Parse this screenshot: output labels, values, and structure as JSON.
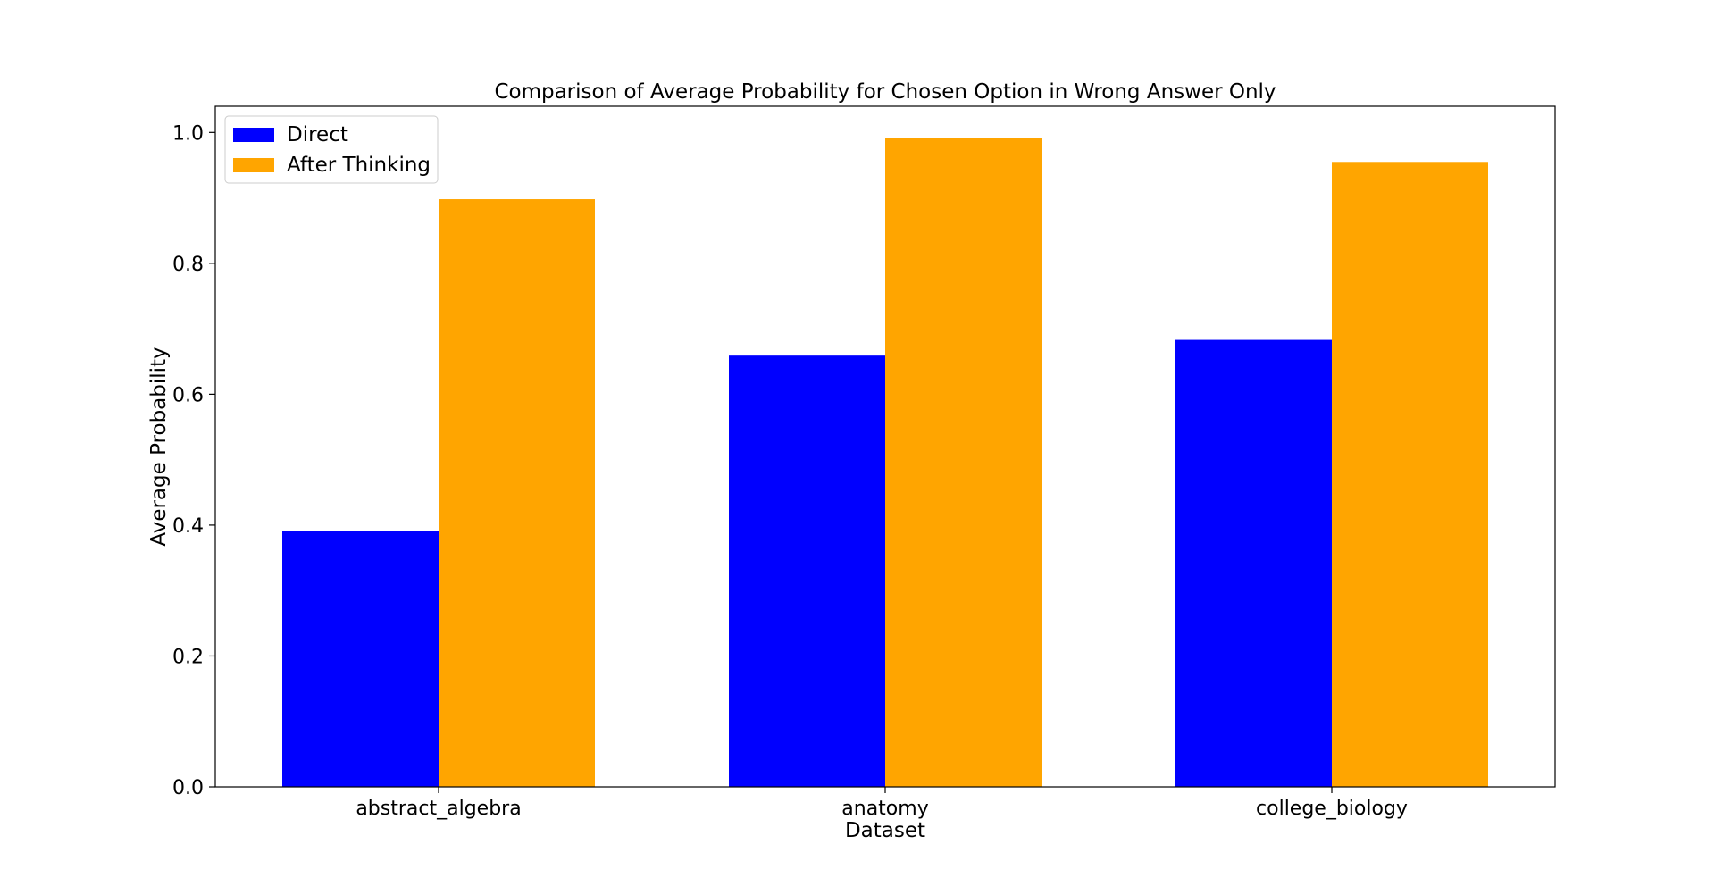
{
  "chart_data": {
    "type": "bar",
    "title": "Comparison of Average Probability for Chosen Option in Wrong Answer Only",
    "xlabel": "Dataset",
    "ylabel": "Average Probability",
    "categories": [
      "abstract_algebra",
      "anatomy",
      "college_biology"
    ],
    "series": [
      {
        "name": "Direct",
        "values": [
          0.391,
          0.659,
          0.683
        ],
        "color": "#0000ff"
      },
      {
        "name": "After Thinking",
        "values": [
          0.898,
          0.991,
          0.955
        ],
        "color": "#ffa500"
      }
    ],
    "ylim": [
      0,
      1.04
    ],
    "yticks": [
      0.0,
      0.2,
      0.4,
      0.6,
      0.8,
      1.0
    ],
    "ytick_labels": [
      "0.0",
      "0.2",
      "0.4",
      "0.6",
      "0.8",
      "1.0"
    ],
    "grid": false,
    "legend_position": "top-left"
  }
}
